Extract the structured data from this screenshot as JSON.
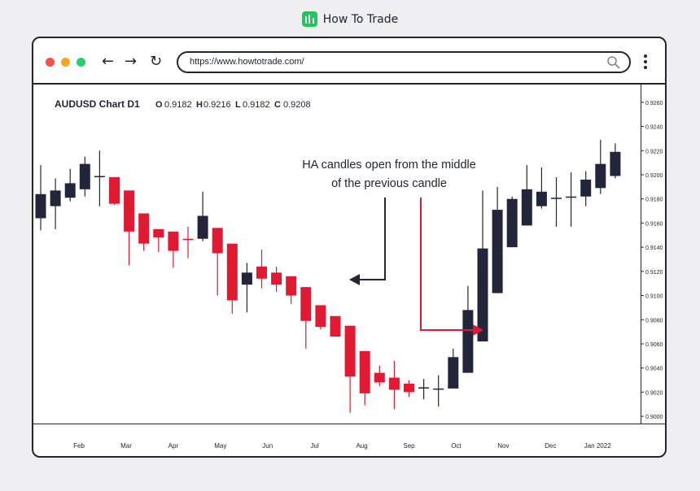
{
  "brand": {
    "name": "How To Trade",
    "logo_icon": "bar-chart-icon",
    "color": "#22c55e"
  },
  "browser": {
    "url": "https://www.howtotrade.com/",
    "controls": [
      "back-icon",
      "forward-icon",
      "reload-icon"
    ],
    "search_icon": "magnifier-icon",
    "menu_icon": "kebab-menu-icon"
  },
  "colors": {
    "bull": "#23263a",
    "bear": "#e01a32",
    "frame": "#23262f"
  },
  "chart_data": {
    "type": "candlestick",
    "title": "AUDUSD Chart D1",
    "ohlc_labels": [
      {
        "key": "O",
        "value": "0.9182"
      },
      {
        "key": "H",
        "value": "0.9216"
      },
      {
        "key": "L",
        "value": "0.9182"
      },
      {
        "key": "C",
        "value": "0.9208"
      }
    ],
    "y_ticks": [
      "0.9260",
      "0.9240",
      "0.9220",
      "0.9200",
      "0.9180",
      "0.9160",
      "0.9140",
      "0.9120",
      "0.9100",
      "0.9080",
      "0.9060",
      "0.9040",
      "0.9020",
      "0.9000"
    ],
    "ylim": [
      0.8994,
      0.9268
    ],
    "x_ticks": [
      {
        "label": "Feb",
        "at": 2.6
      },
      {
        "label": "Mar",
        "at": 5.8
      },
      {
        "label": "Apr",
        "at": 9.0
      },
      {
        "label": "May",
        "at": 12.2
      },
      {
        "label": "Jun",
        "at": 15.4
      },
      {
        "label": "Jul",
        "at": 18.6
      },
      {
        "label": "Aug",
        "at": 21.8
      },
      {
        "label": "Sep",
        "at": 25.0
      },
      {
        "label": "Oct",
        "at": 28.2
      },
      {
        "label": "Nov",
        "at": 31.4
      },
      {
        "label": "Dec",
        "at": 34.6
      },
      {
        "label": "Jan 2022",
        "at": 37.8
      }
    ],
    "candles": [
      {
        "o": 0.9164,
        "h": 0.9208,
        "l": 0.9154,
        "c": 0.9184
      },
      {
        "o": 0.9174,
        "h": 0.9197,
        "l": 0.9155,
        "c": 0.9187
      },
      {
        "o": 0.9181,
        "h": 0.9205,
        "l": 0.9178,
        "c": 0.9193
      },
      {
        "o": 0.9188,
        "h": 0.9215,
        "l": 0.9182,
        "c": 0.9209
      },
      {
        "o": 0.9199,
        "h": 0.922,
        "l": 0.9174,
        "c": 0.9199
      },
      {
        "o": 0.9198,
        "h": 0.9198,
        "l": 0.9175,
        "c": 0.9176
      },
      {
        "o": 0.9187,
        "h": 0.9187,
        "l": 0.9125,
        "c": 0.9153
      },
      {
        "o": 0.9168,
        "h": 0.9168,
        "l": 0.9137,
        "c": 0.9143
      },
      {
        "o": 0.9155,
        "h": 0.9155,
        "l": 0.9136,
        "c": 0.9148
      },
      {
        "o": 0.9153,
        "h": 0.9153,
        "l": 0.9123,
        "c": 0.9137
      },
      {
        "o": 0.9147,
        "h": 0.9157,
        "l": 0.9131,
        "c": 0.9146
      },
      {
        "o": 0.9147,
        "h": 0.9186,
        "l": 0.9145,
        "c": 0.9166
      },
      {
        "o": 0.9156,
        "h": 0.9156,
        "l": 0.91,
        "c": 0.9135
      },
      {
        "o": 0.9143,
        "h": 0.9143,
        "l": 0.9085,
        "c": 0.9096
      },
      {
        "o": 0.9109,
        "h": 0.9127,
        "l": 0.9086,
        "c": 0.9119
      },
      {
        "o": 0.9124,
        "h": 0.9138,
        "l": 0.9106,
        "c": 0.9114
      },
      {
        "o": 0.9119,
        "h": 0.9124,
        "l": 0.9103,
        "c": 0.9109
      },
      {
        "o": 0.9116,
        "h": 0.9116,
        "l": 0.9093,
        "c": 0.91
      },
      {
        "o": 0.9107,
        "h": 0.9107,
        "l": 0.9056,
        "c": 0.9079
      },
      {
        "o": 0.9092,
        "h": 0.9092,
        "l": 0.9072,
        "c": 0.9074
      },
      {
        "o": 0.9083,
        "h": 0.9083,
        "l": 0.9067,
        "c": 0.9066
      },
      {
        "o": 0.9075,
        "h": 0.9075,
        "l": 0.9003,
        "c": 0.9033
      },
      {
        "o": 0.9054,
        "h": 0.9054,
        "l": 0.9009,
        "c": 0.9019
      },
      {
        "o": 0.9036,
        "h": 0.9042,
        "l": 0.9025,
        "c": 0.9028
      },
      {
        "o": 0.9032,
        "h": 0.9046,
        "l": 0.9006,
        "c": 0.9022
      },
      {
        "o": 0.9027,
        "h": 0.903,
        "l": 0.9016,
        "c": 0.902
      },
      {
        "o": 0.9024,
        "h": 0.9031,
        "l": 0.9014,
        "c": 0.9024
      },
      {
        "o": 0.9023,
        "h": 0.9034,
        "l": 0.9008,
        "c": 0.9023
      },
      {
        "o": 0.9023,
        "h": 0.9056,
        "l": 0.9023,
        "c": 0.9049
      },
      {
        "o": 0.9036,
        "h": 0.9108,
        "l": 0.9036,
        "c": 0.9088
      },
      {
        "o": 0.9062,
        "h": 0.9187,
        "l": 0.9062,
        "c": 0.9139
      },
      {
        "o": 0.9102,
        "h": 0.919,
        "l": 0.9102,
        "c": 0.9171
      },
      {
        "o": 0.914,
        "h": 0.9182,
        "l": 0.914,
        "c": 0.918
      },
      {
        "o": 0.9158,
        "h": 0.9208,
        "l": 0.9158,
        "c": 0.9188
      },
      {
        "o": 0.9174,
        "h": 0.9206,
        "l": 0.9172,
        "c": 0.9186
      },
      {
        "o": 0.9181,
        "h": 0.9198,
        "l": 0.9157,
        "c": 0.9181
      },
      {
        "o": 0.9181,
        "h": 0.9202,
        "l": 0.9157,
        "c": 0.9182
      },
      {
        "o": 0.9182,
        "h": 0.9203,
        "l": 0.9174,
        "c": 0.9196
      },
      {
        "o": 0.9189,
        "h": 0.9229,
        "l": 0.9184,
        "c": 0.9209
      },
      {
        "o": 0.9199,
        "h": 0.9226,
        "l": 0.9197,
        "c": 0.9219
      }
    ],
    "annotation": {
      "lines": [
        "HA candles open from the middle",
        "of the previous candle"
      ],
      "arrow_dark_target_index": 21,
      "arrow_red_target_index": 30
    },
    "grid": false
  }
}
